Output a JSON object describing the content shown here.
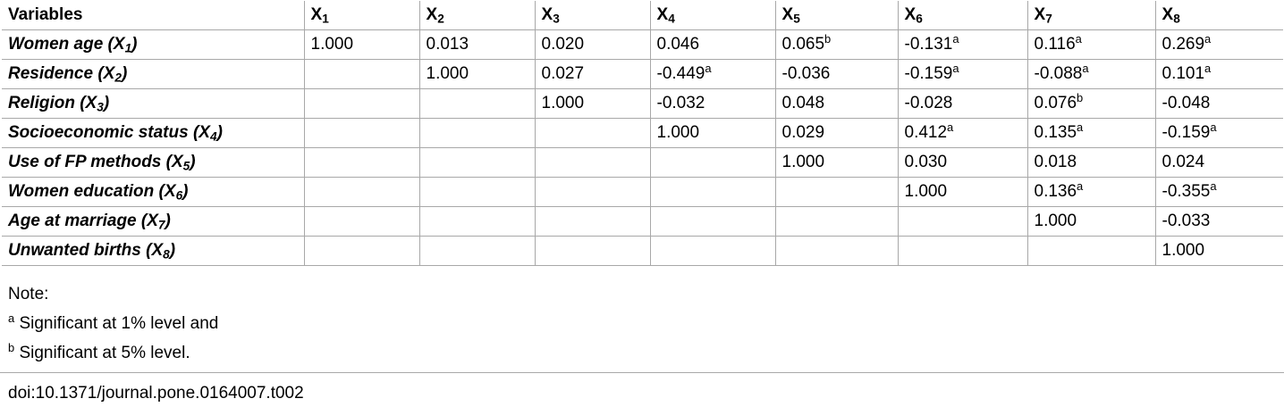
{
  "table": {
    "header": {
      "variables_label": "Variables",
      "columns": [
        {
          "base": "X",
          "sub": "1"
        },
        {
          "base": "X",
          "sub": "2"
        },
        {
          "base": "X",
          "sub": "3"
        },
        {
          "base": "X",
          "sub": "4"
        },
        {
          "base": "X",
          "sub": "5"
        },
        {
          "base": "X",
          "sub": "6"
        },
        {
          "base": "X",
          "sub": "7"
        },
        {
          "base": "X",
          "sub": "8"
        }
      ]
    },
    "rows": [
      {
        "label": "Women age (X",
        "label_sub": "1",
        "label_end": ")",
        "cells": [
          {
            "v": "1.000",
            "s": ""
          },
          {
            "v": "0.013",
            "s": ""
          },
          {
            "v": "0.020",
            "s": ""
          },
          {
            "v": "0.046",
            "s": ""
          },
          {
            "v": "0.065",
            "s": "b"
          },
          {
            "v": "-0.131",
            "s": "a"
          },
          {
            "v": "0.116",
            "s": "a"
          },
          {
            "v": "0.269",
            "s": "a"
          }
        ]
      },
      {
        "label": "Residence (X",
        "label_sub": "2",
        "label_end": ")",
        "cells": [
          {
            "v": "",
            "s": ""
          },
          {
            "v": "1.000",
            "s": ""
          },
          {
            "v": "0.027",
            "s": ""
          },
          {
            "v": "-0.449",
            "s": "a"
          },
          {
            "v": "-0.036",
            "s": ""
          },
          {
            "v": "-0.159",
            "s": "a"
          },
          {
            "v": "-0.088",
            "s": "a"
          },
          {
            "v": "0.101",
            "s": "a"
          }
        ]
      },
      {
        "label": "Religion (X",
        "label_sub": "3",
        "label_end": ")",
        "cells": [
          {
            "v": "",
            "s": ""
          },
          {
            "v": "",
            "s": ""
          },
          {
            "v": "1.000",
            "s": ""
          },
          {
            "v": "-0.032",
            "s": ""
          },
          {
            "v": "0.048",
            "s": ""
          },
          {
            "v": "-0.028",
            "s": ""
          },
          {
            "v": "0.076",
            "s": "b"
          },
          {
            "v": "-0.048",
            "s": ""
          }
        ]
      },
      {
        "label": "Socioeconomic status (X",
        "label_sub": "4",
        "label_end": ")",
        "cells": [
          {
            "v": "",
            "s": ""
          },
          {
            "v": "",
            "s": ""
          },
          {
            "v": "",
            "s": ""
          },
          {
            "v": "1.000",
            "s": ""
          },
          {
            "v": "0.029",
            "s": ""
          },
          {
            "v": "0.412",
            "s": "a"
          },
          {
            "v": "0.135",
            "s": "a"
          },
          {
            "v": "-0.159",
            "s": "a"
          }
        ]
      },
      {
        "label": "Use of FP methods (X",
        "label_sub": "5",
        "label_end": ")",
        "cells": [
          {
            "v": "",
            "s": ""
          },
          {
            "v": "",
            "s": ""
          },
          {
            "v": "",
            "s": ""
          },
          {
            "v": "",
            "s": ""
          },
          {
            "v": "1.000",
            "s": ""
          },
          {
            "v": "0.030",
            "s": ""
          },
          {
            "v": "0.018",
            "s": ""
          },
          {
            "v": "0.024",
            "s": ""
          }
        ]
      },
      {
        "label": "Women education (X",
        "label_sub": "6",
        "label_end": ")",
        "cells": [
          {
            "v": "",
            "s": ""
          },
          {
            "v": "",
            "s": ""
          },
          {
            "v": "",
            "s": ""
          },
          {
            "v": "",
            "s": ""
          },
          {
            "v": "",
            "s": ""
          },
          {
            "v": "1.000",
            "s": ""
          },
          {
            "v": "0.136",
            "s": "a"
          },
          {
            "v": "-0.355",
            "s": "a"
          }
        ]
      },
      {
        "label": "Age at marriage (X",
        "label_sub": "7",
        "label_end": ")",
        "cells": [
          {
            "v": "",
            "s": ""
          },
          {
            "v": "",
            "s": ""
          },
          {
            "v": "",
            "s": ""
          },
          {
            "v": "",
            "s": ""
          },
          {
            "v": "",
            "s": ""
          },
          {
            "v": "",
            "s": ""
          },
          {
            "v": "1.000",
            "s": ""
          },
          {
            "v": "-0.033",
            "s": ""
          }
        ]
      },
      {
        "label": "Unwanted births (X",
        "label_sub": "8",
        "label_end": ")",
        "cells": [
          {
            "v": "",
            "s": ""
          },
          {
            "v": "",
            "s": ""
          },
          {
            "v": "",
            "s": ""
          },
          {
            "v": "",
            "s": ""
          },
          {
            "v": "",
            "s": ""
          },
          {
            "v": "",
            "s": ""
          },
          {
            "v": "",
            "s": ""
          },
          {
            "v": "1.000",
            "s": ""
          }
        ]
      }
    ]
  },
  "notes": {
    "title": "Note:",
    "footnotes": [
      {
        "mark": "a",
        "text": " Significant at 1% level and"
      },
      {
        "mark": "b",
        "text": " Significant at 5% level."
      }
    ]
  },
  "doi": "doi:10.1371/journal.pone.0164007.t002"
}
